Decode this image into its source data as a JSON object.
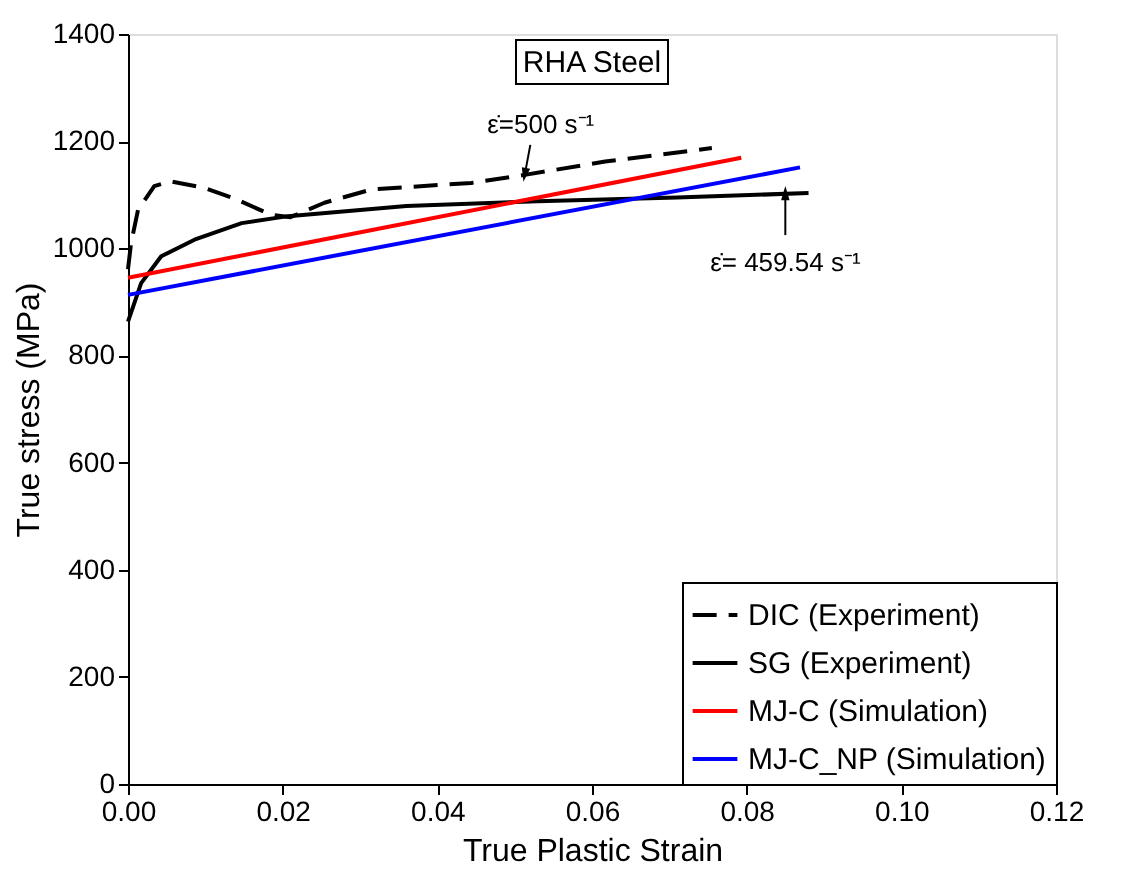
{
  "chart_data": {
    "type": "line",
    "title": "RHA Steel",
    "xlabel": "True Plastic Strain",
    "ylabel": "True stress (MPa)",
    "xlim": [
      0,
      0.12
    ],
    "xticks": [
      {
        "value": 0,
        "label": "0.00"
      },
      {
        "value": 0.02,
        "label": "0.02"
      },
      {
        "value": 0.04,
        "label": "0.04"
      },
      {
        "value": 0.06,
        "label": "0.06"
      },
      {
        "value": 0.08,
        "label": "0.08"
      },
      {
        "value": 0.1,
        "label": "0.10"
      },
      {
        "value": 0.12,
        "label": "0.12"
      }
    ],
    "ylim": [
      0,
      1400
    ],
    "yticks": [
      0,
      200,
      400,
      600,
      800,
      1000,
      1200,
      1400
    ],
    "grid": false,
    "legend": "bottom right",
    "marker": "none",
    "series": [
      {
        "name": "DIC (Experiment)",
        "color": "#000000",
        "line_style": "dashed",
        "x": [
          0.0,
          0.0004,
          0.0013,
          0.0034,
          0.0055,
          0.0098,
          0.0141,
          0.0184,
          0.021,
          0.0254,
          0.0315,
          0.0444,
          0.0513,
          0.0617,
          0.0755
        ],
        "values": [
          961,
          1010,
          1072,
          1116,
          1125,
          1113,
          1091,
          1063,
          1058,
          1085,
          1110,
          1122,
          1137,
          1162,
          1187
        ]
      },
      {
        "name": "SG (Experiment)",
        "color": "#000000",
        "line_style": "solid",
        "x": [
          0.0,
          0.0017,
          0.0043,
          0.0086,
          0.0147,
          0.0207,
          0.036,
          0.053,
          0.071,
          0.088
        ],
        "values": [
          863,
          935,
          985,
          1016,
          1047,
          1060,
          1079,
          1088,
          1095,
          1103
        ]
      },
      {
        "name": "MJ-C (Simulation)",
        "color": "#ff0000",
        "line_style": "solid",
        "x": [
          0.0,
          0.0793
        ],
        "values": [
          945,
          1169
        ]
      },
      {
        "name": "MJ-C_NP (Simulation)",
        "color": "#0000ff",
        "line_style": "solid",
        "x": [
          0.0,
          0.0869
        ],
        "values": [
          913,
          1151
        ]
      }
    ],
    "annotations": [
      {
        "text": "ε̇=500 s⁻¹",
        "x": 0.0513,
        "y": 1137
      },
      {
        "text": "ε̇= 459.54 s⁻¹",
        "x": 0.085,
        "y": 1103
      }
    ]
  }
}
